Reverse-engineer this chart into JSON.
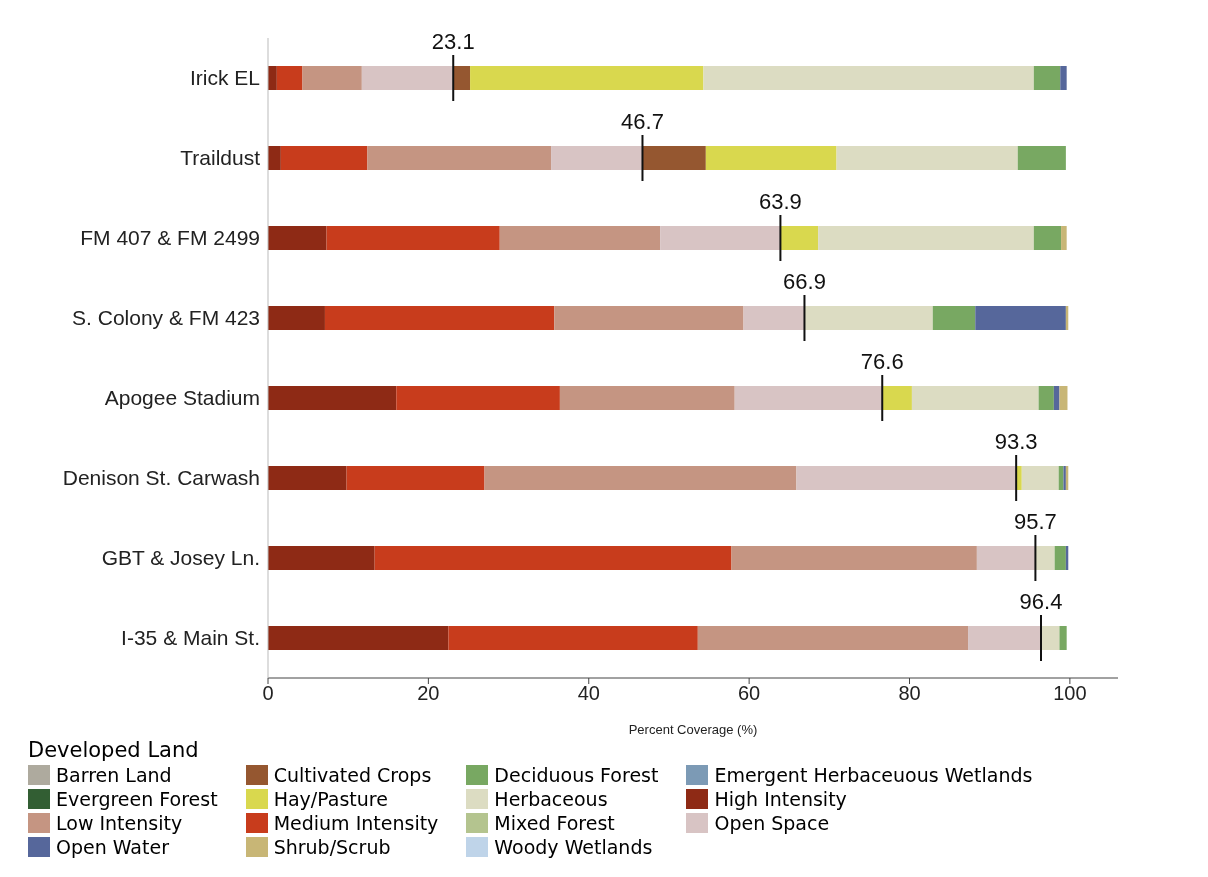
{
  "chart_data": {
    "type": "bar",
    "orientation": "horizontal",
    "stacked": true,
    "xlabel": "Percent Coverage (%)",
    "legend_title": "Developed Land",
    "legend": "bottom",
    "grid": false,
    "categories": [
      "Irick EL",
      "Traildust",
      "FM 407 & FM 2499",
      "S. Colony & FM 423",
      "Apogee Stadium",
      "Denison St. Carwash",
      "GBT & Josey Ln.",
      "I-35 & Main St."
    ],
    "xlim": [
      0,
      106
    ],
    "xticks": [
      0,
      20,
      40,
      60,
      80,
      100
    ],
    "series": [
      {
        "name": "High Intensity",
        "color": "#8e2a15",
        "values": [
          1.1,
          1.6,
          7.3,
          7.1,
          16.0,
          9.8,
          13.3,
          22.5
        ]
      },
      {
        "name": "Medium Intensity",
        "color": "#c83c1c",
        "values": [
          3.2,
          10.8,
          21.6,
          28.6,
          20.4,
          17.2,
          44.5,
          31.1
        ]
      },
      {
        "name": "Low Intensity",
        "color": "#c59582",
        "values": [
          7.4,
          22.9,
          20.0,
          23.6,
          21.8,
          38.9,
          30.6,
          33.7
        ]
      },
      {
        "name": "Open Space",
        "color": "#d8c4c4",
        "values": [
          11.4,
          11.4,
          15.0,
          7.6,
          18.4,
          27.4,
          7.3,
          9.1
        ]
      },
      {
        "name": "Barren Land",
        "color": "#aeaa9e",
        "values": [
          0,
          0,
          0,
          0,
          0,
          0,
          0,
          0
        ]
      },
      {
        "name": "Cultivated Crops",
        "color": "#955730",
        "values": [
          2.1,
          7.9,
          0,
          0,
          0,
          0,
          0,
          0
        ]
      },
      {
        "name": "Hay/Pasture",
        "color": "#d9d84e",
        "values": [
          29.1,
          16.3,
          4.7,
          0,
          3.7,
          0.7,
          0,
          0
        ]
      },
      {
        "name": "Herbaceous",
        "color": "#dcdcc2",
        "values": [
          41.2,
          22.6,
          26.9,
          16.0,
          15.8,
          4.6,
          2.4,
          2.3
        ]
      },
      {
        "name": "Evergreen Forest",
        "color": "#325e33",
        "values": [
          0,
          0,
          0,
          0,
          0,
          0,
          0,
          0
        ]
      },
      {
        "name": "Mixed Forest",
        "color": "#b4c48f",
        "values": [
          0,
          0,
          0,
          0,
          0,
          0,
          0,
          0
        ]
      },
      {
        "name": "Deciduous Forest",
        "color": "#78a862",
        "values": [
          3.3,
          6.0,
          3.4,
          5.3,
          1.9,
          0.6,
          1.4,
          0.9
        ]
      },
      {
        "name": "Open Water",
        "color": "#56679b",
        "values": [
          0.8,
          0,
          0,
          11.3,
          0.7,
          0.3,
          0.3,
          0
        ]
      },
      {
        "name": "Emergent Herbaceuous Wetlands",
        "color": "#7c9ab5",
        "values": [
          0,
          0,
          0,
          0,
          0,
          0,
          0,
          0
        ]
      },
      {
        "name": "Woody Wetlands",
        "color": "#bfd4e9",
        "values": [
          0,
          0,
          0,
          0,
          0,
          0,
          0,
          0
        ]
      },
      {
        "name": "Shrub/Scrub",
        "color": "#c8b676",
        "values": [
          0,
          0,
          0.7,
          0.3,
          1.0,
          0.3,
          0,
          0
        ]
      }
    ],
    "annotations": [
      {
        "text": "23.1",
        "x": 23.1,
        "y": "Irick EL"
      },
      {
        "text": "46.7",
        "x": 46.7,
        "y": "Traildust"
      },
      {
        "text": "63.9",
        "x": 63.9,
        "y": "FM 407 & FM 2499"
      },
      {
        "text": "66.9",
        "x": 66.9,
        "y": "S. Colony & FM 423"
      },
      {
        "text": "76.6",
        "x": 76.6,
        "y": "Apogee Stadium"
      },
      {
        "text": "93.3",
        "x": 93.3,
        "y": "Denison St. Carwash"
      },
      {
        "text": "95.7",
        "x": 95.7,
        "y": "GBT & Josey Ln."
      },
      {
        "text": "96.4",
        "x": 96.4,
        "y": "I-35 & Main St."
      }
    ]
  }
}
